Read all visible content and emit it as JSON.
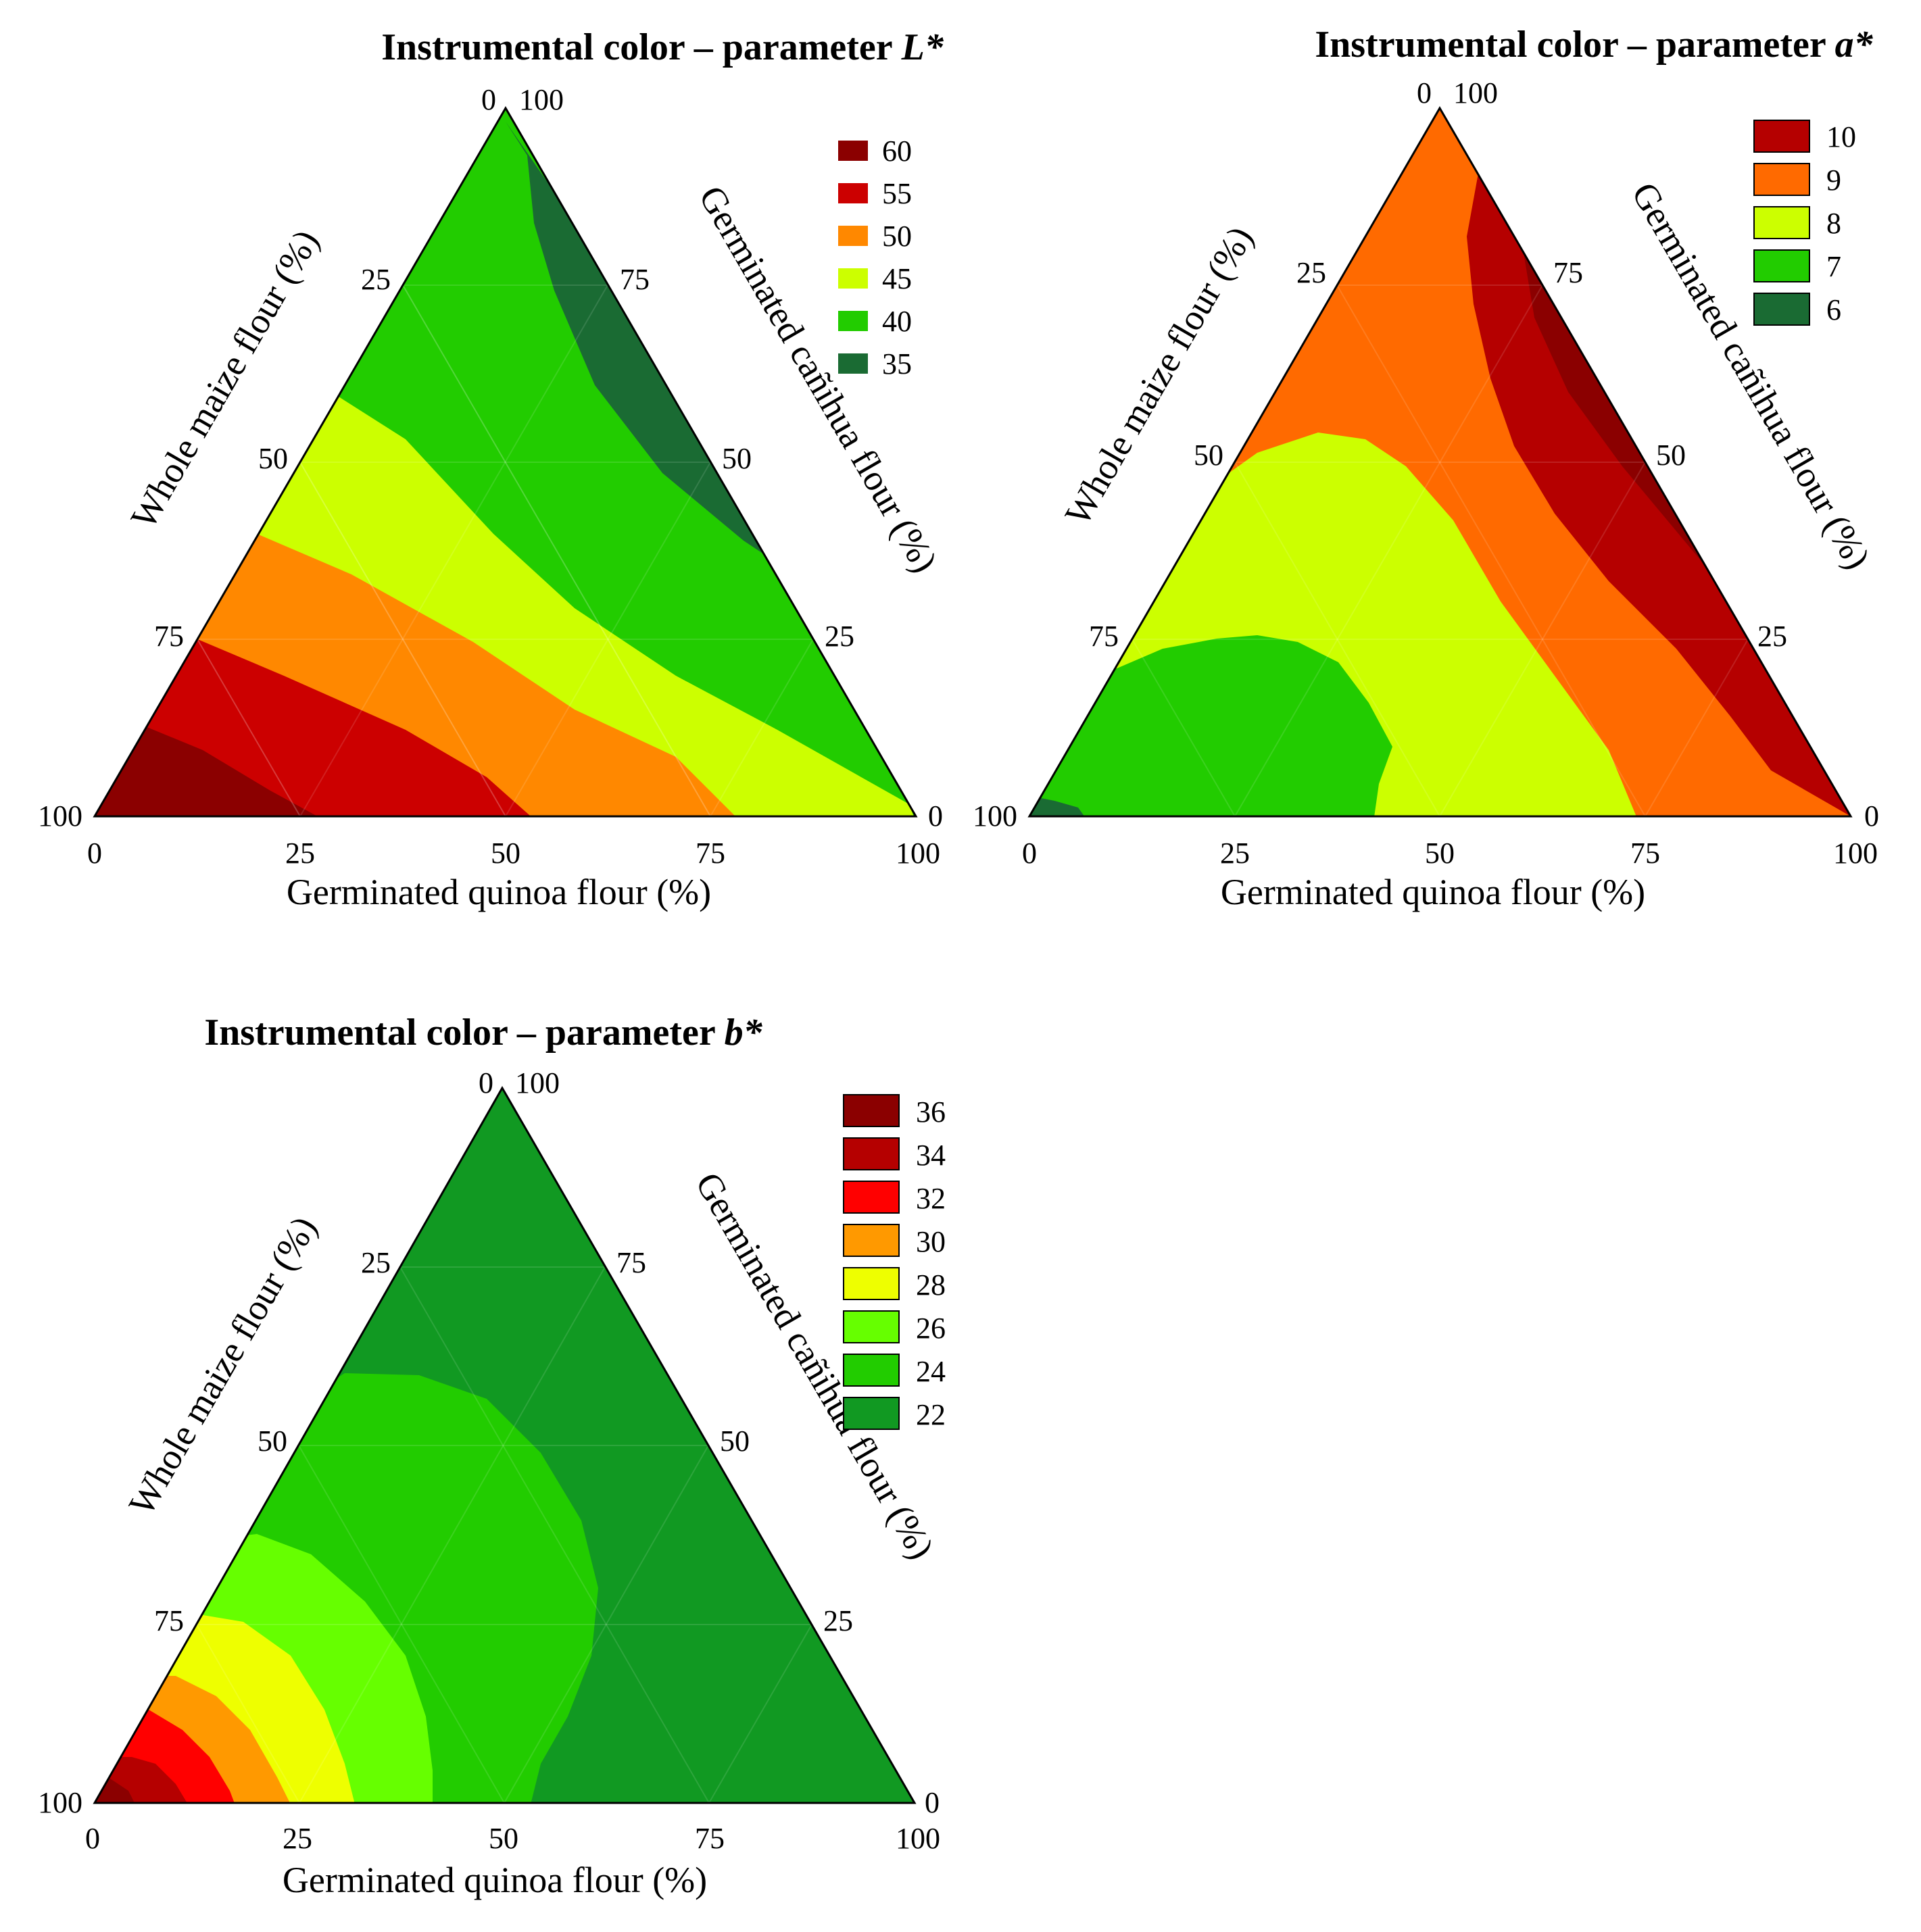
{
  "figure": {
    "charts": [
      {
        "id": "L",
        "title_prefix": "Instrumental color – parameter ",
        "title_var": "L*",
        "legend": [
          {
            "label": "60",
            "color": "#8b0000"
          },
          {
            "label": "55",
            "color": "#cc0000"
          },
          {
            "label": "50",
            "color": "#ff8800"
          },
          {
            "label": "45",
            "color": "#ccff00"
          },
          {
            "label": "40",
            "color": "#22cc00"
          },
          {
            "label": "35",
            "color": "#1a6b33"
          }
        ]
      },
      {
        "id": "a",
        "title_prefix": "Instrumental color – parameter ",
        "title_var": "a*",
        "legend": [
          {
            "label": "10",
            "color": "#b50000"
          },
          {
            "label": "9",
            "color": "#ff6a00"
          },
          {
            "label": "8",
            "color": "#ccff00"
          },
          {
            "label": "7",
            "color": "#22cc00"
          },
          {
            "label": "6",
            "color": "#1a6b33"
          }
        ]
      },
      {
        "id": "b",
        "title_prefix": "Instrumental color – parameter ",
        "title_var": "b*",
        "legend": [
          {
            "label": "36",
            "color": "#8b0000"
          },
          {
            "label": "34",
            "color": "#b50000"
          },
          {
            "label": "32",
            "color": "#ff0000"
          },
          {
            "label": "30",
            "color": "#ff9900"
          },
          {
            "label": "28",
            "color": "#eeff00"
          },
          {
            "label": "26",
            "color": "#66ff00"
          },
          {
            "label": "24",
            "color": "#22cc00"
          },
          {
            "label": "22",
            "color": "#119922"
          }
        ]
      }
    ],
    "axes": {
      "bottom_label": "Germinated quinoa flour (%)",
      "left_label": "Whole maize flour (%)",
      "right_label": "Germinated cañihua flour (%)",
      "bottom_ticks": [
        "0",
        "25",
        "50",
        "75",
        "100"
      ],
      "left_ticks": [
        "100",
        "75",
        "50",
        "25",
        "0"
      ],
      "right_ticks": [
        "100",
        "75",
        "50",
        "25",
        "0"
      ]
    }
  },
  "chart_data": [
    {
      "type": "ternary-contour",
      "title": "Instrumental color – parameter L*",
      "components": [
        "Germinated quinoa flour (%)",
        "Whole maize flour (%)",
        "Germinated cañihua flour (%)"
      ],
      "axis_range": [
        0,
        100
      ],
      "contour_levels": [
        35,
        40,
        45,
        50,
        55,
        60
      ],
      "max_region": "100% whole maize flour (L* ≈ 60)",
      "min_region": "high germinated cañihua flour (L* ≈ 35)"
    },
    {
      "type": "ternary-contour",
      "title": "Instrumental color – parameter a*",
      "components": [
        "Germinated quinoa flour (%)",
        "Whole maize flour (%)",
        "Germinated cañihua flour (%)"
      ],
      "axis_range": [
        0,
        100
      ],
      "contour_levels": [
        6,
        7,
        8,
        9,
        10
      ],
      "max_region": "quinoa/cañihua edge (a* ≈ 10)",
      "min_region": "100% whole maize flour (a* ≈ 6)"
    },
    {
      "type": "ternary-contour",
      "title": "Instrumental color – parameter b*",
      "components": [
        "Germinated quinoa flour (%)",
        "Whole maize flour (%)",
        "Germinated cañihua flour (%)"
      ],
      "axis_range": [
        0,
        100
      ],
      "contour_levels": [
        22,
        24,
        26,
        28,
        30,
        32,
        34,
        36
      ],
      "max_region": "100% whole maize flour (b* ≈ 36)",
      "min_region": "high quinoa / cañihua (b* ≈ 22)"
    }
  ]
}
